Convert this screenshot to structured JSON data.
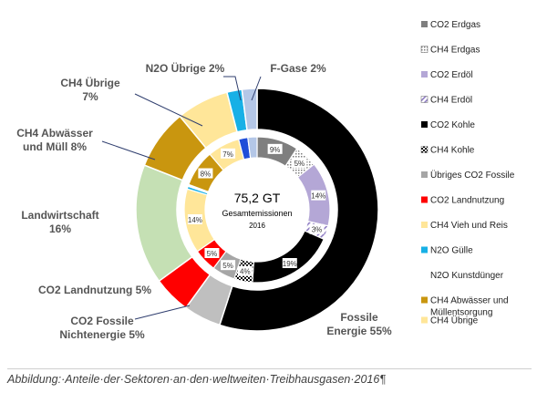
{
  "caption": "Abbildung:·Anteile·der·Sektoren·an·den·weltweiten·Treibhausgasen·2016¶",
  "chart_data": {
    "type": "pie",
    "center": {
      "value": "75,2 GT",
      "line1": "Gesamtemissionen",
      "line2": "2016"
    },
    "outer_ring": [
      {
        "key": "fossile-energie",
        "label": "Fossile\nEnergie 55%",
        "value": 55,
        "color": "#000000"
      },
      {
        "key": "co2-fossile-nichtenergie",
        "label": "CO2 Fossile\nNichtenergie  5%",
        "value": 5,
        "color": "#bfbfbf"
      },
      {
        "key": "co2-landnutzung",
        "label": "CO2 Landnutzung 5%",
        "value": 5,
        "color": "#ff0000"
      },
      {
        "key": "landwirtschaft",
        "label": "Landwirtschaft\n16%",
        "value": 16,
        "color": "#c5e0b4"
      },
      {
        "key": "ch4-abwaesser",
        "label": "CH4 Abwässer\nund Müll 8%",
        "value": 8,
        "color": "#c9960f"
      },
      {
        "key": "ch4-uebrige",
        "label": "CH4 Übrige\n7%",
        "value": 7,
        "color": "#ffe699"
      },
      {
        "key": "n2o-uebrige",
        "label": "N2O Übrige 2%",
        "value": 2,
        "color": "#17b0e6"
      },
      {
        "key": "f-gase",
        "label": "F-Gase 2%",
        "value": 2,
        "color": "#b4c7e7"
      }
    ],
    "inner_ring": [
      {
        "key": "co2-erdgas",
        "value": 9,
        "label": "9%",
        "color": "#7f7f7f",
        "pattern": null
      },
      {
        "key": "ch4-erdgas",
        "value": 5,
        "label": "5%",
        "color": "#d9d9d9",
        "pattern": "dots"
      },
      {
        "key": "co2-erdoel",
        "value": 14,
        "label": "14%",
        "color": "#b4a7d6",
        "pattern": null
      },
      {
        "key": "ch4-erdoel",
        "value": 3,
        "label": "3%",
        "color": "#d9d2e9",
        "pattern": "stripes"
      },
      {
        "key": "co2-kohle",
        "value": 19,
        "label": "19%",
        "color": "#000000",
        "pattern": null
      },
      {
        "key": "ch4-kohle",
        "value": 4,
        "label": "4%",
        "color": "#000000",
        "pattern": "checker"
      },
      {
        "key": "uebriges-co2-fossile",
        "value": 5,
        "label": "5%",
        "color": "#a6a6a6",
        "pattern": null
      },
      {
        "key": "co2-landnutzung",
        "value": 5,
        "label": "5%",
        "color": "#ff0000",
        "pattern": null
      },
      {
        "key": "ch4-vieh-reis",
        "value": 14,
        "label": "14%",
        "color": "#ffe699",
        "pattern": null
      },
      {
        "key": "n2o-guelle",
        "value": 0.6,
        "label": "",
        "color": "#17b0e6",
        "pattern": null
      },
      {
        "key": "n2o-kunstduenger",
        "value": 0.4,
        "label": "",
        "color": "#ffffff",
        "pattern": null
      },
      {
        "key": "ch4-abwaesser",
        "value": 8,
        "label": "8%",
        "color": "#c9960f",
        "pattern": null
      },
      {
        "key": "ch4-uebrige",
        "value": 7,
        "label": "7%",
        "color": "#ffe699",
        "pattern": null
      },
      {
        "key": "n2o-uebrige",
        "value": 2,
        "label": "",
        "color": "#1f4ed8",
        "pattern": null
      },
      {
        "key": "f-gase",
        "value": 2,
        "label": "",
        "color": "#b4c7e7",
        "pattern": null
      }
    ],
    "legend": [
      {
        "label": "CO2 Erdgas",
        "color": "#7f7f7f",
        "pattern": null
      },
      {
        "label": "CH4 Erdgas",
        "color": "#d9d9d9",
        "pattern": "dots"
      },
      {
        "label": "CO2 Erdöl",
        "color": "#b4a7d6",
        "pattern": null
      },
      {
        "label": "CH4 Erdöl",
        "color": "#d9d2e9",
        "pattern": "stripes"
      },
      {
        "label": "CO2 Kohle",
        "color": "#000000",
        "pattern": null
      },
      {
        "label": "CH4 Kohle",
        "color": "#000000",
        "pattern": "checker"
      },
      {
        "label": "Übriges CO2 Fossile",
        "color": "#a6a6a6",
        "pattern": null
      },
      {
        "label": "CO2 Landnutzung",
        "color": "#ff0000",
        "pattern": null
      },
      {
        "label": "CH4 Vieh und Reis",
        "color": "#ffe699",
        "pattern": null
      },
      {
        "label": "N2O Gülle",
        "color": "#17b0e6",
        "pattern": null
      },
      {
        "label": "N2O Kunstdünger",
        "color": null,
        "pattern": null
      },
      {
        "label": "CH4 Abwässer und\nMüllentsorgung",
        "color": "#c9960f",
        "pattern": null
      },
      {
        "label": "CH4 Übrige",
        "color": "#ffe699",
        "pattern": null
      }
    ]
  }
}
